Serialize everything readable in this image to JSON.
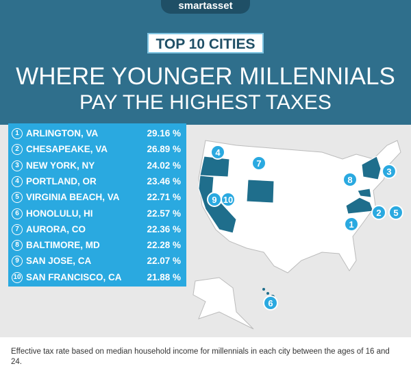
{
  "logo": "smartasset",
  "banner": "TOP 10 CITIES",
  "title": [
    "WHERE YOUNGER MILLENNIALS",
    "PAY THE HIGHEST TAXES"
  ],
  "cities": [
    {
      "rank": "1",
      "name": "ARLINGTON, VA",
      "rate": "29.16 %"
    },
    {
      "rank": "2",
      "name": "CHESAPEAKE, VA",
      "rate": "26.89 %"
    },
    {
      "rank": "3",
      "name": "NEW YORK, NY",
      "rate": "24.02 %"
    },
    {
      "rank": "4",
      "name": "PORTLAND, OR",
      "rate": "23.46 %"
    },
    {
      "rank": "5",
      "name": "VIRGINIA BEACH, VA",
      "rate": "22.71 %"
    },
    {
      "rank": "6",
      "name": "HONOLULU, HI",
      "rate": "22.57 %"
    },
    {
      "rank": "7",
      "name": "AURORA, CO",
      "rate": "22.36 %"
    },
    {
      "rank": "8",
      "name": "BALTIMORE, MD",
      "rate": "22.28 %"
    },
    {
      "rank": "9",
      "name": "SAN JOSE, CA",
      "rate": "22.07 %"
    },
    {
      "rank": "10",
      "name": "SAN FRANCISCO, CA",
      "rate": "21.88 %"
    }
  ],
  "map_markers": [
    "4",
    "7",
    "3",
    "8",
    "2",
    "5",
    "1",
    "9",
    "10",
    "6"
  ],
  "footnote": "Effective tax rate based on median household income for millennials in each city between the ages of 16 and 24."
}
